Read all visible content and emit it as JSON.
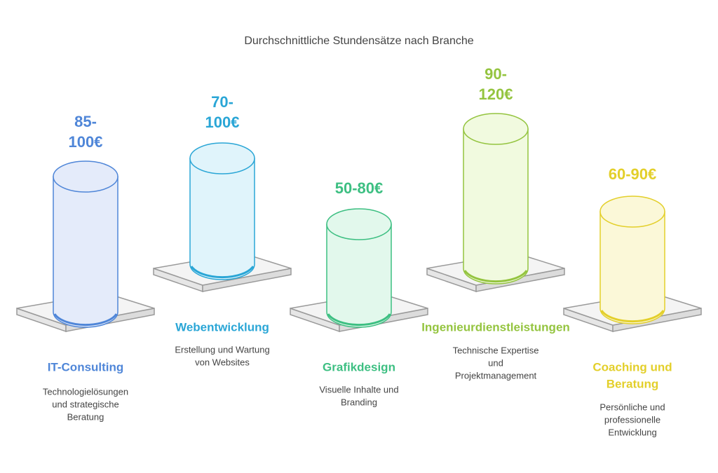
{
  "title": "Durchschnittliche Stundensätze nach Branche",
  "items": [
    {
      "value_lines": [
        "85-",
        "100€"
      ],
      "name_lines": [
        "IT-Consulting"
      ],
      "description_lines": [
        "Technologielösungen",
        "und strategische",
        "Beratung"
      ]
    },
    {
      "value_lines": [
        "70-",
        "100€"
      ],
      "name_lines": [
        "Webentwicklung"
      ],
      "description_lines": [
        "Erstellung und Wartung",
        "von Websites"
      ]
    },
    {
      "value_lines": [
        "50-80€"
      ],
      "name_lines": [
        "Grafikdesign"
      ],
      "description_lines": [
        "Visuelle Inhalte und",
        "Branding"
      ]
    },
    {
      "value_lines": [
        "90-",
        "120€"
      ],
      "name_lines": [
        "Ingenieurdienstleistungen"
      ],
      "description_lines": [
        "Technische Expertise",
        "und",
        "Projektmanagement"
      ]
    },
    {
      "value_lines": [
        "60-90€"
      ],
      "name_lines": [
        "Coaching und",
        "Beratung"
      ],
      "description_lines": [
        "Persönliche und",
        "professionelle",
        "Entwicklung"
      ]
    }
  ]
}
